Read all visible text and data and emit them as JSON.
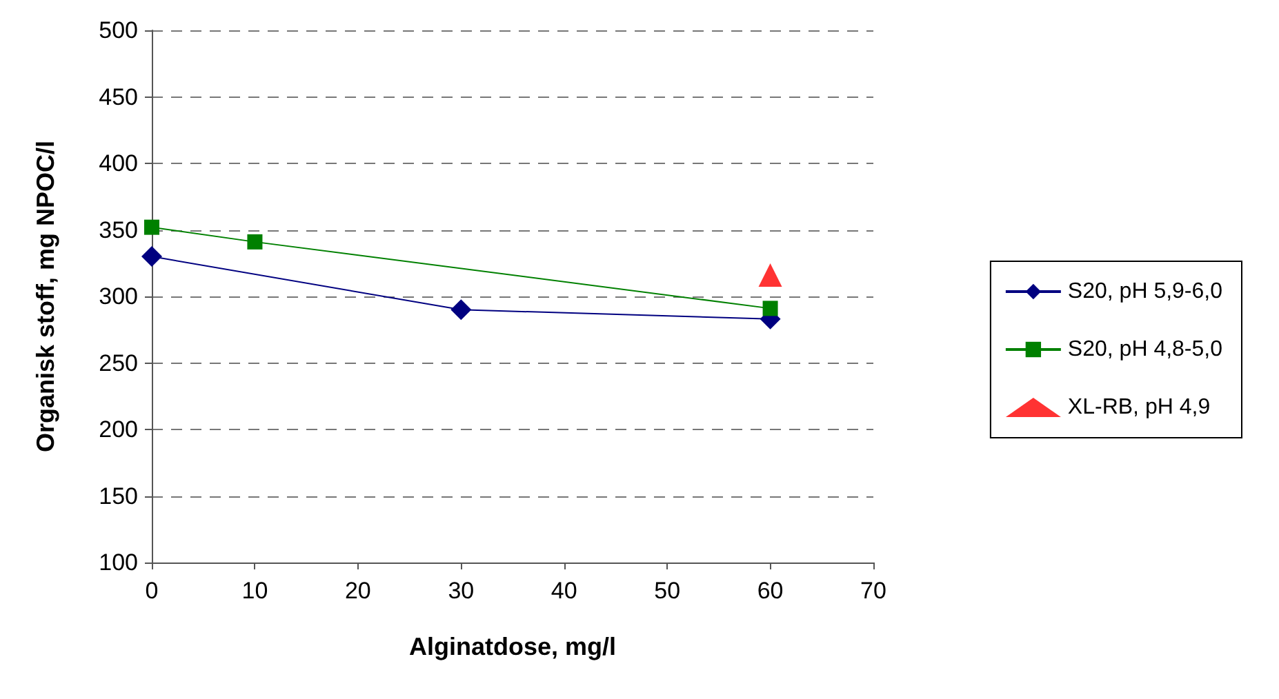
{
  "chart_data": {
    "type": "line",
    "xlabel": "Alginatdose, mg/l",
    "ylabel": "Organisk stoff, mg NPOC/l",
    "xlim": [
      0,
      70
    ],
    "xticks": [
      0,
      10,
      20,
      30,
      40,
      50,
      60,
      70
    ],
    "ylim": [
      100,
      500
    ],
    "yticks": [
      100,
      150,
      200,
      250,
      300,
      350,
      400,
      450,
      500
    ],
    "grid": "y",
    "legend": "right",
    "line_style": "solid",
    "series": [
      {
        "name": "S20, pH 5,9-6,0",
        "color": "#000080",
        "marker": "diamond",
        "x": [
          0,
          30,
          60
        ],
        "values": [
          330,
          290,
          283
        ]
      },
      {
        "name": "S20, pH 4,8-5,0",
        "color": "#008000",
        "marker": "square",
        "x": [
          0,
          10,
          60
        ],
        "values": [
          352,
          341,
          291
        ]
      },
      {
        "name": "XL-RB, pH 4,9",
        "color": "#ff0000",
        "marker": "triangle",
        "type": "scatter",
        "x": [
          60
        ],
        "values": [
          316
        ]
      }
    ]
  }
}
